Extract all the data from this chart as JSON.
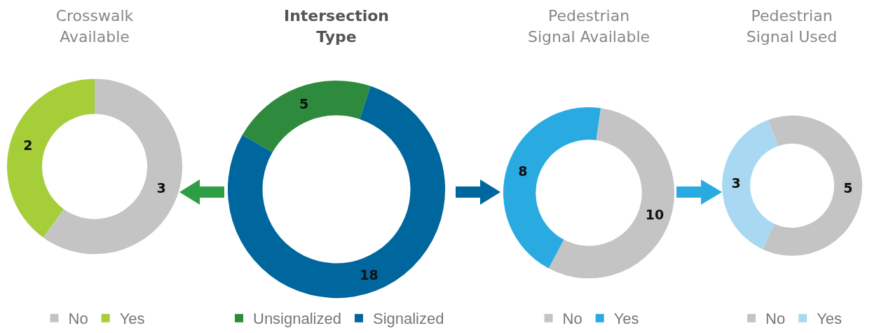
{
  "chart_data": [
    {
      "type": "donut",
      "title": "Crosswalk Available",
      "categories": [
        "No",
        "Yes"
      ],
      "values": [
        3,
        2
      ],
      "colors": [
        "#c4c4c4",
        "#a6ce39"
      ],
      "data_labels": true,
      "legend": "bottom"
    },
    {
      "type": "donut",
      "title": "Intersection Type",
      "categories": [
        "Unsignalized",
        "Signalized"
      ],
      "values": [
        5,
        18
      ],
      "colors": [
        "#2e8b3e",
        "#00669e"
      ],
      "data_labels": true,
      "legend": "bottom"
    },
    {
      "type": "donut",
      "title": "Pedestrian Signal Available",
      "categories": [
        "No",
        "Yes"
      ],
      "values": [
        10,
        8
      ],
      "colors": [
        "#c4c4c4",
        "#29abe2"
      ],
      "data_labels": true,
      "legend": "bottom"
    },
    {
      "type": "donut",
      "title": "Pedestrian Signal Used",
      "categories": [
        "No",
        "Yes"
      ],
      "values": [
        5,
        3
      ],
      "colors": [
        "#c4c4c4",
        "#a9d9f2"
      ],
      "data_labels": true,
      "legend": "bottom"
    }
  ]
}
